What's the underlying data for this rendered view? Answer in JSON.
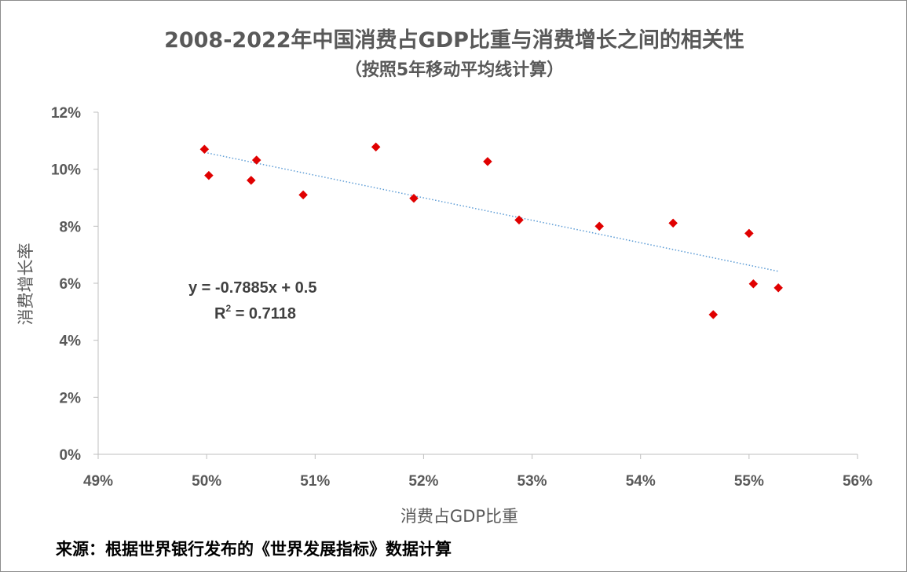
{
  "chart_data": {
    "type": "scatter",
    "title": "2008-2022年中国消费占GDP比重与消费增长之间的相关性",
    "subtitle": "（按照5年移动平均线计算）",
    "xlabel": "消费占GDP比重",
    "ylabel": "消费增长率",
    "xlim": [
      0.49,
      0.56
    ],
    "ylim": [
      0,
      0.12
    ],
    "x_ticks": [
      0.49,
      0.5,
      0.51,
      0.52,
      0.53,
      0.54,
      0.55,
      0.56
    ],
    "x_tick_labels": [
      "49%",
      "50%",
      "51%",
      "52%",
      "53%",
      "54%",
      "55%",
      "56%"
    ],
    "y_ticks": [
      0,
      0.02,
      0.04,
      0.06,
      0.08,
      0.1,
      0.12
    ],
    "y_tick_labels": [
      "0%",
      "2%",
      "4%",
      "6%",
      "8%",
      "10%",
      "12%"
    ],
    "series": [
      {
        "name": "消费增长率",
        "marker": "diamond",
        "color": "#e00000",
        "points": [
          {
            "x": 0.4998,
            "y": 0.107
          },
          {
            "x": 0.5002,
            "y": 0.0978
          },
          {
            "x": 0.5041,
            "y": 0.0961
          },
          {
            "x": 0.5046,
            "y": 0.1032
          },
          {
            "x": 0.5089,
            "y": 0.091
          },
          {
            "x": 0.5156,
            "y": 0.1078
          },
          {
            "x": 0.5191,
            "y": 0.0898
          },
          {
            "x": 0.5259,
            "y": 0.1027
          },
          {
            "x": 0.5288,
            "y": 0.0822
          },
          {
            "x": 0.5362,
            "y": 0.08
          },
          {
            "x": 0.543,
            "y": 0.0811
          },
          {
            "x": 0.5467,
            "y": 0.049
          },
          {
            "x": 0.55,
            "y": 0.0775
          },
          {
            "x": 0.5504,
            "y": 0.0598
          },
          {
            "x": 0.5527,
            "y": 0.0584
          }
        ]
      }
    ],
    "trendline": {
      "type": "linear",
      "slope": -0.7885,
      "intercept": 0.5,
      "x_range": [
        0.4998,
        0.5527
      ],
      "equation_label": "y = -0.7885x + 0.5",
      "r2_prefix": "R",
      "r2_sup": "2",
      "r2_value": " = 0.7118",
      "color": "#5b9bd5"
    }
  },
  "source_note": "来源：根据世界银行发布的《世界发展指标》数据计算"
}
